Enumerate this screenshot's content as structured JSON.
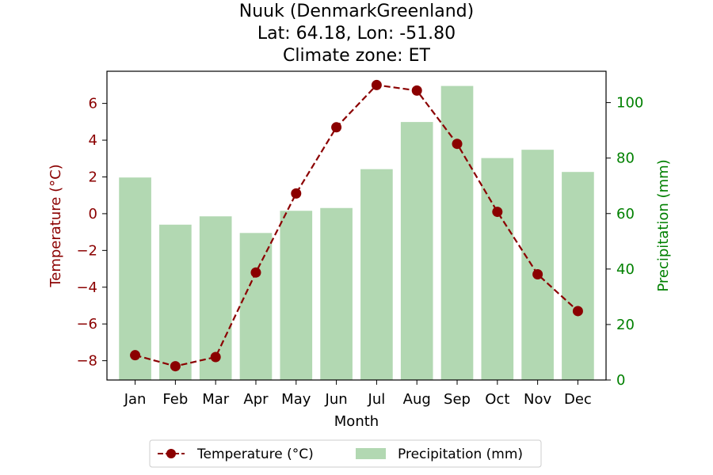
{
  "title": {
    "line1": "Nuuk (DenmarkGreenland)",
    "line2": "Lat: 64.18, Lon: -51.80",
    "line3": "Climate zone: ET"
  },
  "colors": {
    "temperature": "#8b0000",
    "precipitation": "#b2d8b2",
    "precip_axis": "#008000"
  },
  "chart_data": {
    "type": "bar",
    "categories": [
      "Jan",
      "Feb",
      "Mar",
      "Apr",
      "May",
      "Jun",
      "Jul",
      "Aug",
      "Sep",
      "Oct",
      "Nov",
      "Dec"
    ],
    "xlabel": "Month",
    "series": [
      {
        "name": "Temperature (°C)",
        "type": "line",
        "axis": "left",
        "values": [
          -7.7,
          -8.3,
          -7.8,
          -3.2,
          1.1,
          4.7,
          7.0,
          6.7,
          3.8,
          0.1,
          -3.3,
          -5.3
        ]
      },
      {
        "name": "Precipitation (mm)",
        "type": "bar",
        "axis": "right",
        "values": [
          73,
          56,
          59,
          53,
          61,
          62,
          76,
          93,
          106,
          80,
          83,
          75
        ]
      }
    ],
    "ylabel_left": "Temperature (°C)",
    "ylabel_right": "Precipitation (mm)",
    "ylim_left": [
      -9.05,
      7.75
    ],
    "ylim_right": [
      0,
      111.3
    ],
    "yticks_left": [
      -8,
      -6,
      -4,
      -2,
      0,
      2,
      4,
      6
    ],
    "yticks_right": [
      0,
      20,
      40,
      60,
      80,
      100
    ],
    "grid": false,
    "legend": "bottom-center"
  }
}
